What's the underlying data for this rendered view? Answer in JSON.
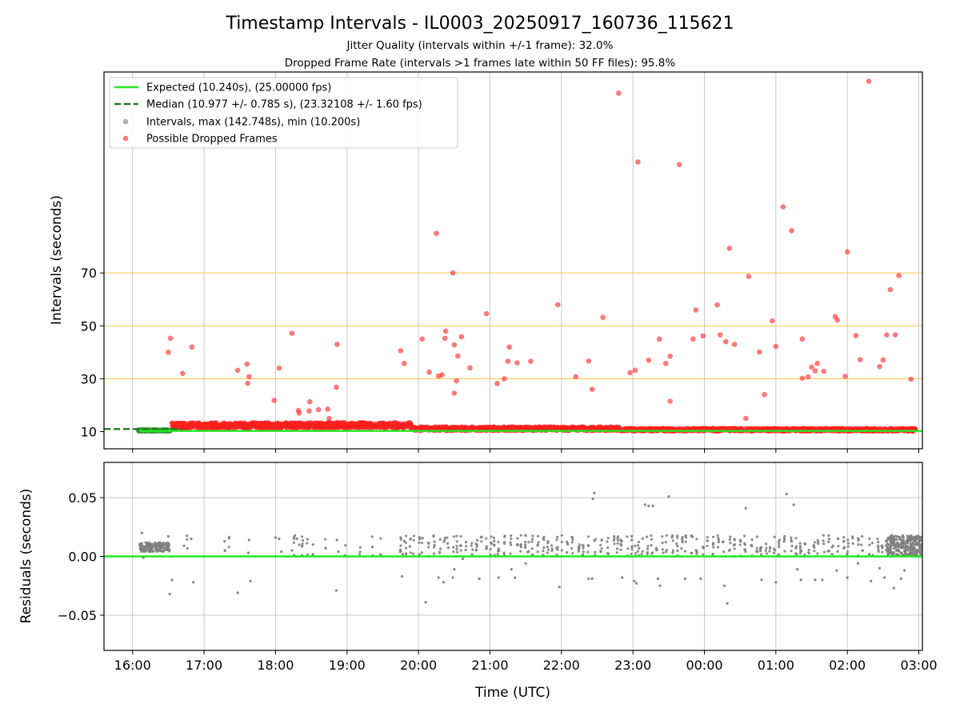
{
  "figure": {
    "title": "Timestamp Intervals - IL0003_20250917_160736_115621",
    "subtitle_jitter": "Jitter Quality (intervals within +/-1 frame): 32.0%",
    "subtitle_dropped": "Dropped Frame Rate (intervals >1 frames late within 50 FF files): 95.8%"
  },
  "chart_data": [
    {
      "type": "scatter",
      "panel": "intervals",
      "ylabel": "Intervals (seconds)",
      "ylim": [
        3.5,
        146
      ],
      "yticks": [
        10,
        30,
        50,
        70
      ],
      "yticklabels": [
        "10",
        "30",
        "50",
        "70"
      ],
      "xlim": [
        15.6,
        27.05
      ],
      "grid": true,
      "legend_position": "upper-left",
      "legend": [
        {
          "label": "Expected (10.240s), (25.00000 fps)",
          "kind": "line",
          "color": "#22e822",
          "dash": "solid"
        },
        {
          "label": "Median (10.977 +/- 0.785 s), (23.32108 +/- 1.60 fps)",
          "kind": "line",
          "color": "#1a7f1a",
          "dash": "dashed"
        },
        {
          "label": "Intervals, max (142.748s), min (10.200s)",
          "kind": "marker",
          "color": "#9e9e9e"
        },
        {
          "label": "Possible Dropped Frames",
          "kind": "marker",
          "color": "#ff2020"
        }
      ],
      "reference_lines": [
        {
          "name": "Expected",
          "y": 10.24,
          "color": "#22e822",
          "dash": "solid",
          "x_start": 16.1
        },
        {
          "name": "Median",
          "y": 10.977,
          "color": "#1a7f1a",
          "dash": "dashed",
          "x_start": 15.6,
          "x_end": 16.7
        }
      ],
      "threshold_lines": [
        30,
        50,
        70
      ],
      "threshold_color": "#f5c842",
      "series": [
        {
          "name": "Possible Dropped Frames",
          "color": "#ff2020",
          "points": [
            [
              16.5,
              40
            ],
            [
              16.53,
              45.3
            ],
            [
              16.7,
              32
            ],
            [
              16.83,
              42
            ],
            [
              17.47,
              33.2
            ],
            [
              17.6,
              35.5
            ],
            [
              17.61,
              28.3
            ],
            [
              17.63,
              30.8
            ],
            [
              17.98,
              21.8
            ],
            [
              18.05,
              34
            ],
            [
              18.23,
              47.2
            ],
            [
              18.32,
              18
            ],
            [
              18.33,
              17
            ],
            [
              18.47,
              17.8
            ],
            [
              18.48,
              21.3
            ],
            [
              18.6,
              18.3
            ],
            [
              18.73,
              18.5
            ],
            [
              18.75,
              15
            ],
            [
              18.85,
              26.8
            ],
            [
              18.86,
              43
            ],
            [
              19.75,
              40.6
            ],
            [
              19.8,
              35.8
            ],
            [
              20.05,
              45
            ],
            [
              20.25,
              85
            ],
            [
              20.15,
              32.5
            ],
            [
              20.28,
              31
            ],
            [
              20.33,
              31.5
            ],
            [
              20.38,
              48
            ],
            [
              20.37,
              45.3
            ],
            [
              20.48,
              70
            ],
            [
              20.5,
              24.5
            ],
            [
              20.53,
              29.2
            ],
            [
              20.5,
              42.8
            ],
            [
              20.55,
              38.6
            ],
            [
              20.6,
              45.9
            ],
            [
              20.72,
              34.1
            ],
            [
              20.95,
              54.6
            ],
            [
              21.1,
              28.2
            ],
            [
              21.2,
              30
            ],
            [
              21.25,
              36.6
            ],
            [
              21.27,
              42
            ],
            [
              21.38,
              36
            ],
            [
              21.57,
              36.6
            ],
            [
              21.95,
              58
            ],
            [
              22.2,
              30.8
            ],
            [
              22.38,
              36.7
            ],
            [
              22.43,
              26
            ],
            [
              22.58,
              53.2
            ],
            [
              22.8,
              138
            ],
            [
              22.96,
              32.3
            ],
            [
              23.03,
              33.2
            ],
            [
              23.07,
              112
            ],
            [
              23.22,
              37
            ],
            [
              23.37,
              45
            ],
            [
              23.46,
              35.8
            ],
            [
              23.52,
              38.5
            ],
            [
              23.52,
              21.5
            ],
            [
              23.65,
              111
            ],
            [
              23.84,
              45
            ],
            [
              23.88,
              56
            ],
            [
              23.98,
              46.2
            ],
            [
              24.18,
              57.9
            ],
            [
              24.22,
              46.6
            ],
            [
              24.3,
              44
            ],
            [
              24.35,
              79.3
            ],
            [
              24.42,
              43
            ],
            [
              24.58,
              15
            ],
            [
              24.62,
              68.7
            ],
            [
              24.77,
              40.1
            ],
            [
              24.84,
              24
            ],
            [
              24.95,
              51.9
            ],
            [
              25.0,
              42.2
            ],
            [
              25.1,
              95
            ],
            [
              25.22,
              86
            ],
            [
              25.37,
              30.2
            ],
            [
              25.37,
              45
            ],
            [
              25.45,
              30.7
            ],
            [
              25.5,
              34.4
            ],
            [
              25.55,
              33
            ],
            [
              25.58,
              35.8
            ],
            [
              25.67,
              32.8
            ],
            [
              25.83,
              53.5
            ],
            [
              25.86,
              52.2
            ],
            [
              25.97,
              30.9
            ],
            [
              26.0,
              78
            ],
            [
              26.12,
              46.3
            ],
            [
              26.18,
              37.2
            ],
            [
              26.3,
              142.5
            ],
            [
              26.45,
              34.6
            ],
            [
              26.5,
              37.1
            ],
            [
              26.55,
              46.6
            ],
            [
              26.6,
              63.7
            ],
            [
              26.67,
              46.6
            ],
            [
              26.72,
              69
            ],
            [
              26.89,
              29.8
            ]
          ]
        }
      ]
    },
    {
      "type": "scatter",
      "panel": "residuals",
      "xlabel": "Time (UTC)",
      "ylabel": "Residuals (seconds)",
      "ylim": [
        -0.08,
        0.08
      ],
      "yticks": [
        -0.05,
        0,
        0.05
      ],
      "yticklabels": [
        "−0.05",
        "0.00",
        "0.05"
      ],
      "xlim": [
        15.6,
        27.05
      ],
      "xticks": [
        16,
        17,
        18,
        19,
        20,
        21,
        22,
        23,
        24,
        25,
        26,
        27
      ],
      "xticklabels": [
        "16:00",
        "17:00",
        "18:00",
        "19:00",
        "20:00",
        "21:00",
        "22:00",
        "23:00",
        "00:00",
        "01:00",
        "02:00",
        "03:00"
      ],
      "grid": true,
      "reference_lines": [
        {
          "name": "Zero",
          "y": 0,
          "color": "#22e822",
          "dash": "solid",
          "x_start": 15.6,
          "x_end": 27.05
        }
      ],
      "series": [
        {
          "name": "Residuals",
          "color": "#808080",
          "points": [
            [
              16.13,
              0.02
            ],
            [
              16.15,
              -0.001
            ],
            [
              16.5,
              0.017
            ],
            [
              16.52,
              -0.032
            ],
            [
              16.55,
              -0.02
            ],
            [
              16.72,
              0.009
            ],
            [
              16.82,
              0.015
            ],
            [
              16.85,
              -0.022
            ],
            [
              17.47,
              -0.031
            ],
            [
              17.65,
              -0.021
            ],
            [
              17.63,
              0.014
            ],
            [
              17.62,
              0.003
            ],
            [
              18.0,
              0.016
            ],
            [
              18.05,
              0.015
            ],
            [
              18.08,
              0.004
            ],
            [
              18.23,
              0.005
            ],
            [
              18.3,
              0.015
            ],
            [
              18.33,
              0.01
            ],
            [
              18.85,
              -0.029
            ],
            [
              18.86,
              0.014
            ],
            [
              18.88,
              0.004
            ],
            [
              19.75,
              0.016
            ],
            [
              19.77,
              -0.017
            ],
            [
              19.8,
              0.013
            ],
            [
              19.78,
              0.002
            ],
            [
              20.28,
              -0.018
            ],
            [
              20.35,
              -0.022
            ],
            [
              20.1,
              -0.039
            ],
            [
              20.48,
              -0.018
            ],
            [
              20.5,
              -0.011
            ],
            [
              20.62,
              -0.002
            ],
            [
              20.85,
              -0.019
            ],
            [
              21.12,
              -0.018
            ],
            [
              21.35,
              -0.018
            ],
            [
              21.5,
              -0.006
            ],
            [
              21.3,
              -0.011
            ],
            [
              21.97,
              -0.026
            ],
            [
              22.38,
              -0.019
            ],
            [
              22.43,
              -0.019
            ],
            [
              22.44,
              0.049
            ],
            [
              22.46,
              0.054
            ],
            [
              22.85,
              -0.018
            ],
            [
              23.02,
              -0.021
            ],
            [
              23.05,
              -0.023
            ],
            [
              23.17,
              0.044
            ],
            [
              23.22,
              0.043
            ],
            [
              23.28,
              0.043
            ],
            [
              23.35,
              -0.019
            ],
            [
              23.5,
              0.051
            ],
            [
              23.38,
              -0.025
            ],
            [
              23.73,
              -0.019
            ],
            [
              23.95,
              -0.019
            ],
            [
              24.28,
              -0.025
            ],
            [
              24.32,
              -0.04
            ],
            [
              24.58,
              0.041
            ],
            [
              24.8,
              -0.02
            ],
            [
              25.0,
              -0.022
            ],
            [
              25.15,
              0.053
            ],
            [
              25.25,
              0.044
            ],
            [
              25.3,
              -0.011
            ],
            [
              25.35,
              -0.02
            ],
            [
              25.55,
              -0.02
            ],
            [
              25.65,
              -0.02
            ],
            [
              25.85,
              -0.012
            ],
            [
              26.0,
              -0.018
            ],
            [
              26.15,
              -0.006
            ],
            [
              26.33,
              -0.021
            ],
            [
              26.45,
              -0.01
            ],
            [
              26.52,
              -0.018
            ],
            [
              26.65,
              -0.027
            ],
            [
              26.75,
              -0.019
            ],
            [
              26.8,
              -0.012
            ]
          ]
        }
      ]
    }
  ]
}
